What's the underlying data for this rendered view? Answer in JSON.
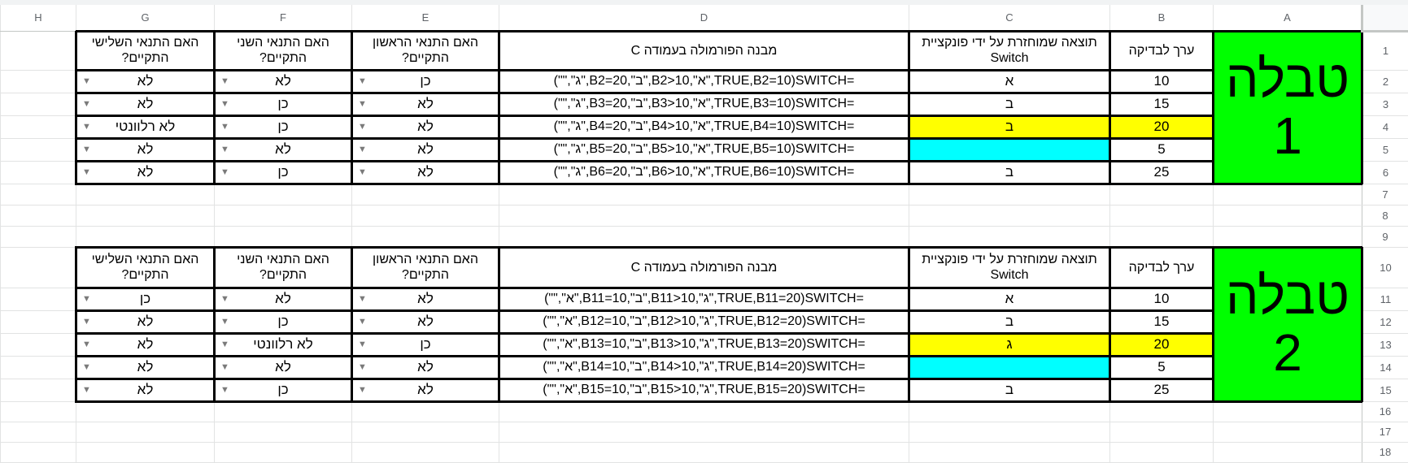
{
  "colors": {
    "title_bg": "#00ff00",
    "highlight_yellow": "#ffff00",
    "highlight_cyan": "#00ffff"
  },
  "column_headers": [
    "A",
    "B",
    "C",
    "D",
    "E",
    "F",
    "G",
    "H"
  ],
  "row_numbers": [
    "1",
    "2",
    "3",
    "4",
    "5",
    "6",
    "7",
    "8",
    "9",
    "10",
    "11",
    "12",
    "13",
    "14",
    "15",
    "16",
    "17",
    "18"
  ],
  "tables": [
    {
      "title": "טבלה 1",
      "headers": {
        "B": "ערך לבדיקה",
        "C": "תוצאה שמוחזרת על ידי פונקציית Switch",
        "D": "מבנה הפורמולה בעמודה C",
        "E": "האם התנאי הראשון התקיים?",
        "F": "האם התנאי השני התקיים?",
        "G": "האם התנאי השלישי התקיים?"
      },
      "rows": [
        {
          "B": "10",
          "C": "א",
          "D": "=SWITCH(TRUE,B2=10,\"א\",B2>10,\"ב\",B2=20,\"ג\",\"\")",
          "E": "כן",
          "F": "לא",
          "G": "לא",
          "hl": {}
        },
        {
          "B": "15",
          "C": "ב",
          "D": "=SWITCH(TRUE,B3=10,\"א\",B3>10,\"ב\",B3=20,\"ג\",\"\")",
          "E": "לא",
          "F": "כן",
          "G": "לא",
          "hl": {}
        },
        {
          "B": "20",
          "C": "ב",
          "D": "=SWITCH(TRUE,B4=10,\"א\",B4>10,\"ב\",B4=20,\"ג\",\"\")",
          "E": "לא",
          "F": "כן",
          "G": "לא רלוונטי",
          "hl": {
            "B": "yellow",
            "C": "yellow"
          }
        },
        {
          "B": "5",
          "C": "",
          "D": "=SWITCH(TRUE,B5=10,\"א\",B5>10,\"ב\",B5=20,\"ג\",\"\")",
          "E": "לא",
          "F": "לא",
          "G": "לא",
          "hl": {
            "C": "cyan"
          }
        },
        {
          "B": "25",
          "C": "ב",
          "D": "=SWITCH(TRUE,B6=10,\"א\",B6>10,\"ב\",B6=20,\"ג\",\"\")",
          "E": "לא",
          "F": "כן",
          "G": "לא",
          "hl": {}
        }
      ]
    },
    {
      "title": "טבלה 2",
      "headers": {
        "B": "ערך לבדיקה",
        "C": "תוצאה שמוחזרת על ידי פונקציית Switch",
        "D": "מבנה הפורמולה בעמודה C",
        "E": "האם התנאי הראשון התקיים?",
        "F": "האם התנאי השני התקיים?",
        "G": "האם התנאי השלישי התקיים?"
      },
      "rows": [
        {
          "B": "10",
          "C": "א",
          "D": "=SWITCH(TRUE,B11=20,\"ג\",B11>10,\"ב\",B11=10,\"א\",\"\")",
          "E": "לא",
          "F": "לא",
          "G": "כן",
          "hl": {}
        },
        {
          "B": "15",
          "C": "ב",
          "D": "=SWITCH(TRUE,B12=20,\"ג\",B12>10,\"ב\",B12=10,\"א\",\"\")",
          "E": "לא",
          "F": "כן",
          "G": "לא",
          "hl": {}
        },
        {
          "B": "20",
          "C": "ג",
          "D": "=SWITCH(TRUE,B13=20,\"ג\",B13>10,\"ב\",B13=10,\"א\",\"\")",
          "E": "כן",
          "F": "לא רלוונטי",
          "G": "לא",
          "hl": {
            "B": "yellow",
            "C": "yellow"
          }
        },
        {
          "B": "5",
          "C": "",
          "D": "=SWITCH(TRUE,B14=20,\"ג\",B14>10,\"ב\",B14=10,\"א\",\"\")",
          "E": "לא",
          "F": "לא",
          "G": "לא",
          "hl": {
            "C": "cyan"
          }
        },
        {
          "B": "25",
          "C": "ב",
          "D": "=SWITCH(TRUE,B15=20,\"ג\",B15>10,\"ב\",B15=10,\"א\",\"\")",
          "E": "לא",
          "F": "כן",
          "G": "לא",
          "hl": {}
        }
      ]
    }
  ],
  "dropdown_icon": "dropdown-arrow-icon"
}
